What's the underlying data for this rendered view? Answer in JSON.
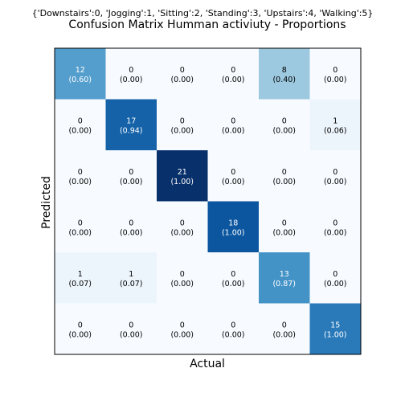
{
  "chart_data": {
    "type": "heatmap",
    "suptitle": "{'Downstairs':0, 'Jogging':1, 'Sitting':2, 'Standing':3, 'Upstairs':4, 'Walking':5}",
    "title": "Confusion Matrix Humman activiuty - Proportions",
    "xlabel": "Actual",
    "ylabel": "Predicted",
    "colormap": "Blues",
    "grid": false,
    "counts": [
      [
        12,
        0,
        0,
        0,
        8,
        0
      ],
      [
        0,
        17,
        0,
        0,
        0,
        1
      ],
      [
        0,
        0,
        21,
        0,
        0,
        0
      ],
      [
        0,
        0,
        0,
        18,
        0,
        0
      ],
      [
        1,
        1,
        0,
        0,
        13,
        0
      ],
      [
        0,
        0,
        0,
        0,
        0,
        15
      ]
    ],
    "proportions": [
      [
        0.6,
        0.0,
        0.0,
        0.0,
        0.4,
        0.0
      ],
      [
        0.0,
        0.94,
        0.0,
        0.0,
        0.0,
        0.06
      ],
      [
        0.0,
        0.0,
        1.0,
        0.0,
        0.0,
        0.0
      ],
      [
        0.0,
        0.0,
        0.0,
        1.0,
        0.0,
        0.0
      ],
      [
        0.07,
        0.07,
        0.0,
        0.0,
        0.87,
        0.0
      ],
      [
        0.0,
        0.0,
        0.0,
        0.0,
        0.0,
        1.0
      ]
    ],
    "cell_labels": [
      [
        "12",
        "0",
        "0",
        "0",
        "8",
        "0"
      ],
      [
        "0",
        "17",
        "0",
        "0",
        "0",
        "1"
      ],
      [
        "0",
        "0",
        "21",
        "0",
        "0",
        "0"
      ],
      [
        "0",
        "0",
        "0",
        "18",
        "0",
        "0"
      ],
      [
        "1",
        "1",
        "0",
        "0",
        "13",
        "0"
      ],
      [
        "0",
        "0",
        "0",
        "0",
        "0",
        "15"
      ]
    ],
    "cell_sublabels": [
      [
        "(0.60)",
        "(0.00)",
        "(0.00)",
        "(0.00)",
        "(0.40)",
        "(0.00)"
      ],
      [
        "(0.00)",
        "(0.94)",
        "(0.00)",
        "(0.00)",
        "(0.00)",
        "(0.06)"
      ],
      [
        "(0.00)",
        "(0.00)",
        "(1.00)",
        "(0.00)",
        "(0.00)",
        "(0.00)"
      ],
      [
        "(0.00)",
        "(0.00)",
        "(0.00)",
        "(1.00)",
        "(0.00)",
        "(0.00)"
      ],
      [
        "(0.07)",
        "(0.07)",
        "(0.00)",
        "(0.00)",
        "(0.87)",
        "(0.00)"
      ],
      [
        "(0.00)",
        "(0.00)",
        "(0.00)",
        "(0.00)",
        "(0.00)",
        "(1.00)"
      ]
    ],
    "colors": {
      "low": "#f7fbff",
      "high": "#08306b",
      "text_dark": "#000000",
      "text_light": "#ffffff",
      "frame": "#000000"
    }
  }
}
